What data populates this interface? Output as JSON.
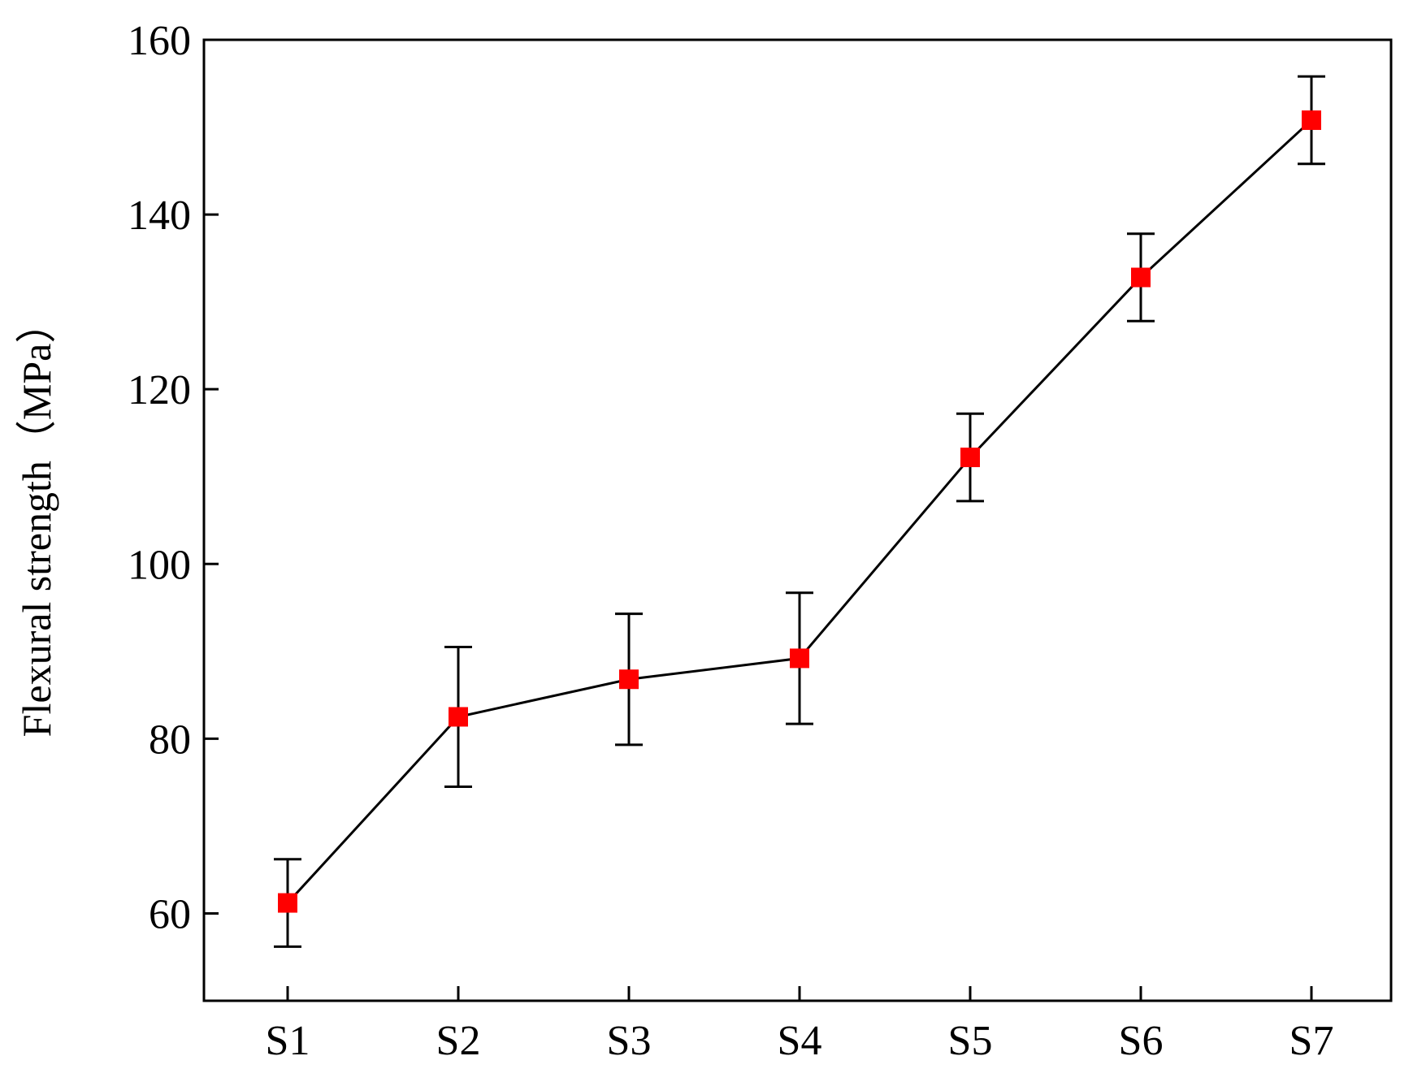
{
  "chart_data": {
    "type": "line",
    "title": "",
    "xlabel": "",
    "ylabel": "Flexural strength（MPa）",
    "categories": [
      "S1",
      "S2",
      "S3",
      "S4",
      "S5",
      "S6",
      "S7"
    ],
    "series": [
      {
        "values": [
          61.2,
          82.5,
          86.8,
          89.2,
          112.2,
          132.8,
          150.8
        ],
        "error": [
          5.0,
          8.0,
          7.5,
          7.5,
          5.0,
          5.0,
          5.0
        ]
      }
    ],
    "ylim": [
      50,
      160
    ],
    "yticks": [
      60,
      80,
      100,
      120,
      140,
      160
    ],
    "grid": false,
    "legend": "none",
    "colors": {
      "marker": "#ff0000",
      "line": "#000000",
      "axis": "#000000"
    }
  }
}
